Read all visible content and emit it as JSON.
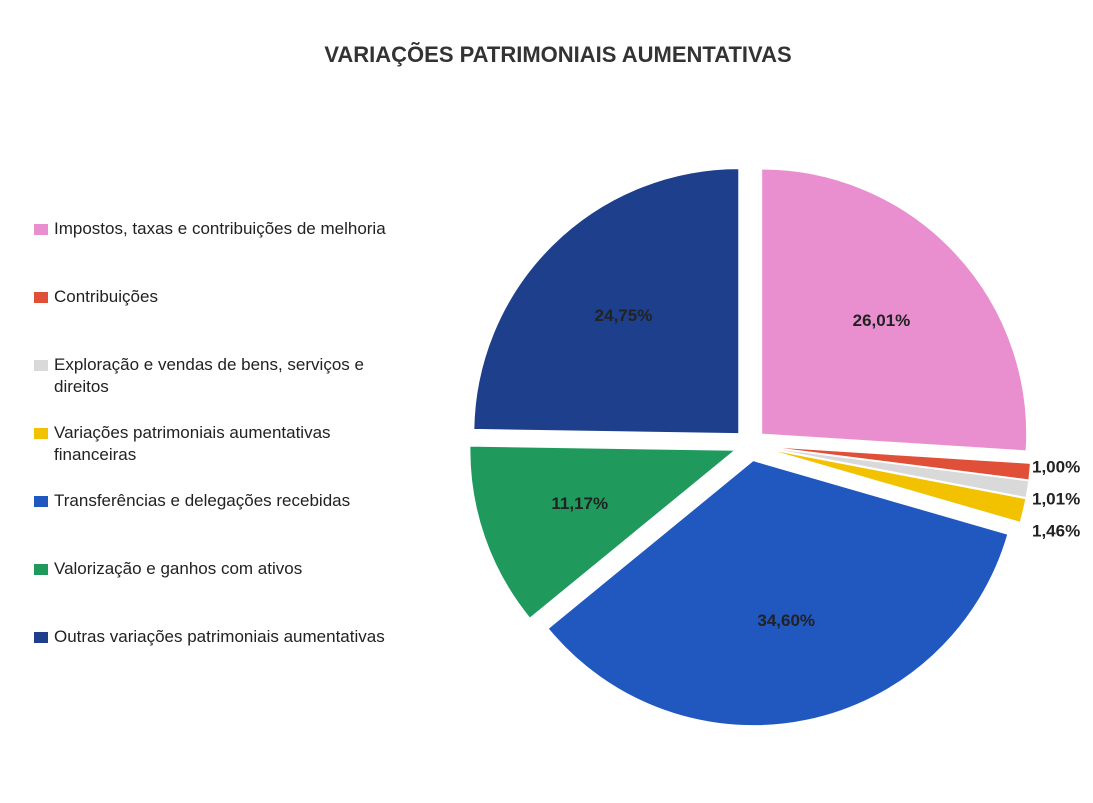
{
  "chart_data": {
    "type": "pie",
    "title": "VARIAÇÕES PATRIMONIAIS AUMENTATIVAS",
    "categories": [
      "Impostos, taxas e contribuições de melhoria",
      "Contribuições",
      "Exploração e vendas de bens, serviços e direitos",
      "Variações patrimoniais aumentativas financeiras",
      "Transferências e delegações recebidas",
      "Valorização e ganhos com ativos",
      "Outras variações patrimoniais aumentativas"
    ],
    "values": [
      26.01,
      1.0,
      1.01,
      1.46,
      34.6,
      11.17,
      24.75
    ],
    "value_labels": [
      "26,01%",
      "1,00%",
      "1,01%",
      "1,46%",
      "34,60%",
      "11,17%",
      "24,75%"
    ],
    "colors": [
      "#e98fd0",
      "#e05038",
      "#d9d9d9",
      "#f2c200",
      "#2058c0",
      "#1f9a5c",
      "#1e3f8c"
    ],
    "legend": "left"
  }
}
